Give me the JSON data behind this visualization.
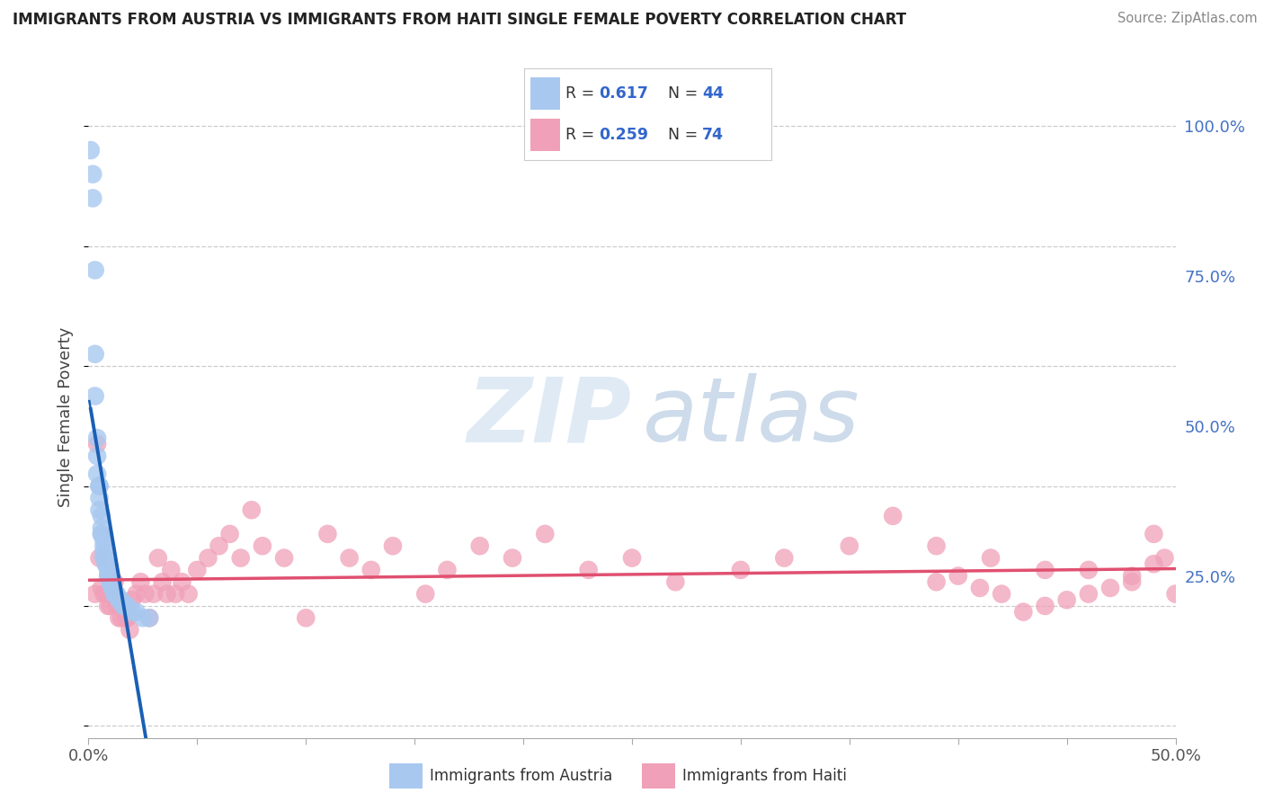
{
  "title": "IMMIGRANTS FROM AUSTRIA VS IMMIGRANTS FROM HAITI SINGLE FEMALE POVERTY CORRELATION CHART",
  "source": "Source: ZipAtlas.com",
  "ylabel": "Single Female Poverty",
  "xlim": [
    0,
    0.5
  ],
  "ylim": [
    -0.02,
    1.05
  ],
  "austria_R": 0.617,
  "austria_N": 44,
  "haiti_R": 0.259,
  "haiti_N": 74,
  "austria_color": "#a8c8f0",
  "austria_line_color": "#1a5fb4",
  "haiti_color": "#f0a0b8",
  "haiti_line_color": "#e05070",
  "austria_scatter_x": [
    0.001,
    0.002,
    0.002,
    0.003,
    0.003,
    0.003,
    0.004,
    0.004,
    0.004,
    0.005,
    0.005,
    0.005,
    0.005,
    0.006,
    0.006,
    0.006,
    0.006,
    0.007,
    0.007,
    0.007,
    0.007,
    0.008,
    0.008,
    0.008,
    0.009,
    0.009,
    0.009,
    0.01,
    0.01,
    0.01,
    0.011,
    0.011,
    0.012,
    0.012,
    0.013,
    0.014,
    0.015,
    0.016,
    0.017,
    0.018,
    0.02,
    0.022,
    0.025,
    0.028
  ],
  "austria_scatter_y": [
    0.96,
    0.88,
    0.92,
    0.76,
    0.62,
    0.55,
    0.48,
    0.45,
    0.42,
    0.4,
    0.4,
    0.38,
    0.36,
    0.35,
    0.33,
    0.32,
    0.32,
    0.31,
    0.3,
    0.29,
    0.28,
    0.28,
    0.27,
    0.27,
    0.26,
    0.25,
    0.25,
    0.25,
    0.24,
    0.24,
    0.23,
    0.23,
    0.22,
    0.22,
    0.22,
    0.21,
    0.21,
    0.2,
    0.2,
    0.2,
    0.19,
    0.19,
    0.18,
    0.18
  ],
  "haiti_scatter_x": [
    0.003,
    0.004,
    0.005,
    0.006,
    0.007,
    0.008,
    0.009,
    0.01,
    0.011,
    0.012,
    0.013,
    0.014,
    0.015,
    0.016,
    0.017,
    0.018,
    0.019,
    0.02,
    0.022,
    0.024,
    0.026,
    0.028,
    0.03,
    0.032,
    0.034,
    0.036,
    0.038,
    0.04,
    0.043,
    0.046,
    0.05,
    0.055,
    0.06,
    0.065,
    0.07,
    0.075,
    0.08,
    0.09,
    0.1,
    0.11,
    0.12,
    0.13,
    0.14,
    0.155,
    0.165,
    0.18,
    0.195,
    0.21,
    0.23,
    0.25,
    0.27,
    0.3,
    0.32,
    0.35,
    0.37,
    0.39,
    0.415,
    0.44,
    0.46,
    0.48,
    0.49,
    0.495,
    0.5,
    0.49,
    0.48,
    0.47,
    0.46,
    0.45,
    0.44,
    0.43,
    0.42,
    0.41,
    0.4,
    0.39
  ],
  "haiti_scatter_y": [
    0.22,
    0.47,
    0.28,
    0.23,
    0.22,
    0.22,
    0.2,
    0.2,
    0.22,
    0.24,
    0.2,
    0.18,
    0.18,
    0.2,
    0.18,
    0.18,
    0.16,
    0.21,
    0.22,
    0.24,
    0.22,
    0.18,
    0.22,
    0.28,
    0.24,
    0.22,
    0.26,
    0.22,
    0.24,
    0.22,
    0.26,
    0.28,
    0.3,
    0.32,
    0.28,
    0.36,
    0.3,
    0.28,
    0.18,
    0.32,
    0.28,
    0.26,
    0.3,
    0.22,
    0.26,
    0.3,
    0.28,
    0.32,
    0.26,
    0.28,
    0.24,
    0.26,
    0.28,
    0.3,
    0.35,
    0.3,
    0.28,
    0.26,
    0.26,
    0.25,
    0.32,
    0.28,
    0.22,
    0.27,
    0.24,
    0.23,
    0.22,
    0.21,
    0.2,
    0.19,
    0.22,
    0.23,
    0.25,
    0.24
  ],
  "x_ticks": [
    0.0,
    0.05,
    0.1,
    0.15,
    0.2,
    0.25,
    0.3,
    0.35,
    0.4,
    0.45,
    0.5
  ],
  "x_tick_labels": [
    "0.0%",
    "",
    "",
    "",
    "",
    "",
    "",
    "",
    "",
    "",
    "50.0%"
  ],
  "y_tick_vals": [
    0.0,
    0.25,
    0.5,
    0.75,
    1.0
  ],
  "y_tick_labels": [
    "",
    "25.0%",
    "50.0%",
    "75.0%",
    "100.0%"
  ]
}
